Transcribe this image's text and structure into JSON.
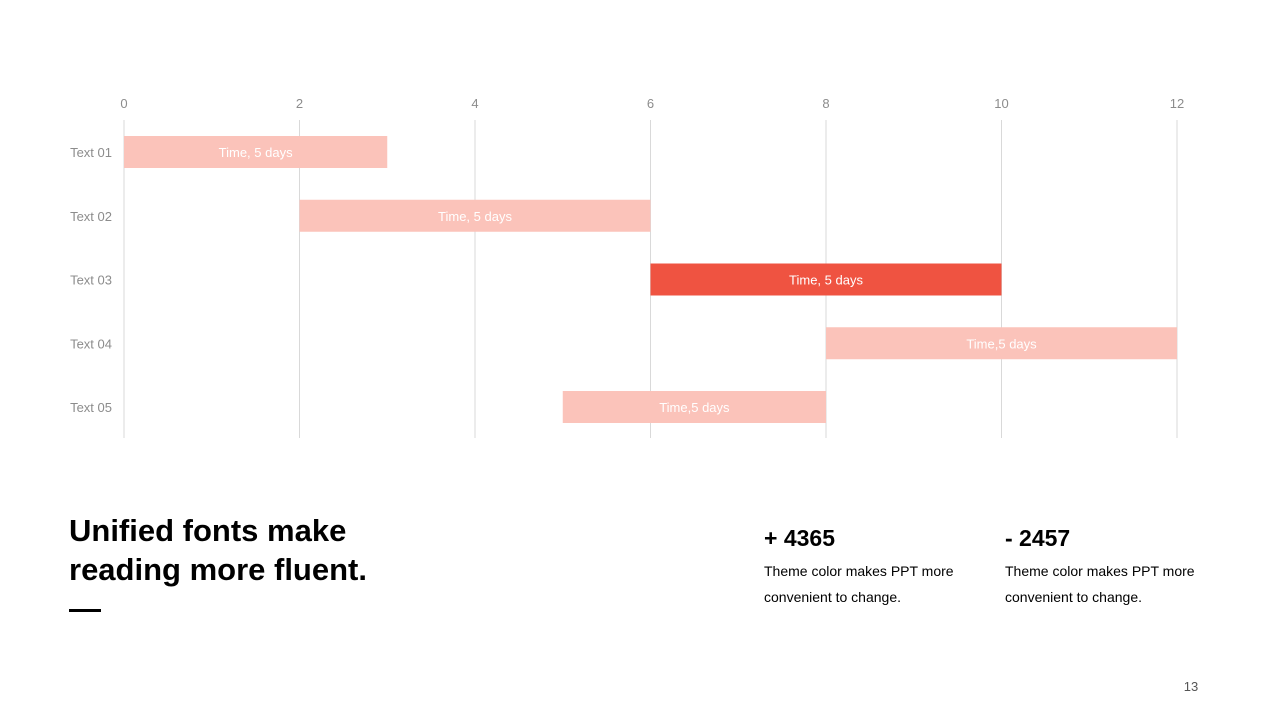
{
  "chart_data": {
    "type": "bar",
    "orientation": "horizontal",
    "style": "gantt",
    "x_ticks": [
      "0",
      "2",
      "4",
      "6",
      "8",
      "10",
      "12"
    ],
    "xlim": [
      0,
      12
    ],
    "grid": true,
    "tasks": [
      {
        "label": "Text 01",
        "start": 0,
        "end": 3,
        "bar_label": "Time, 5 days",
        "color": "#FBC3BA"
      },
      {
        "label": "Text 02",
        "start": 2,
        "end": 6,
        "bar_label": "Time, 5 days",
        "color": "#FBC3BA"
      },
      {
        "label": "Text 03",
        "start": 6,
        "end": 10,
        "bar_label": "Time, 5 days",
        "color": "#EF5341"
      },
      {
        "label": "Text 04",
        "start": 8,
        "end": 12,
        "bar_label": "Time,5 days",
        "color": "#FBC3BA"
      },
      {
        "label": "Text 05",
        "start": 5,
        "end": 8,
        "bar_label": "Time,5 days",
        "color": "#FBC3BA"
      }
    ]
  },
  "headline": {
    "line1": "Unified fonts make",
    "line2": "reading more fluent."
  },
  "stats": [
    {
      "value": "+ 4365",
      "desc_line1": "Theme color makes PPT more",
      "desc_line2": "convenient to change."
    },
    {
      "value": "- 2457",
      "desc_line1": "Theme color makes PPT more",
      "desc_line2": "convenient to change."
    }
  ],
  "page_number": "13",
  "colors": {
    "accent": "#EF5341",
    "accent_light": "#FBC3BA",
    "grid": "#D9D9D9",
    "tick_text": "#8C8C8C"
  }
}
